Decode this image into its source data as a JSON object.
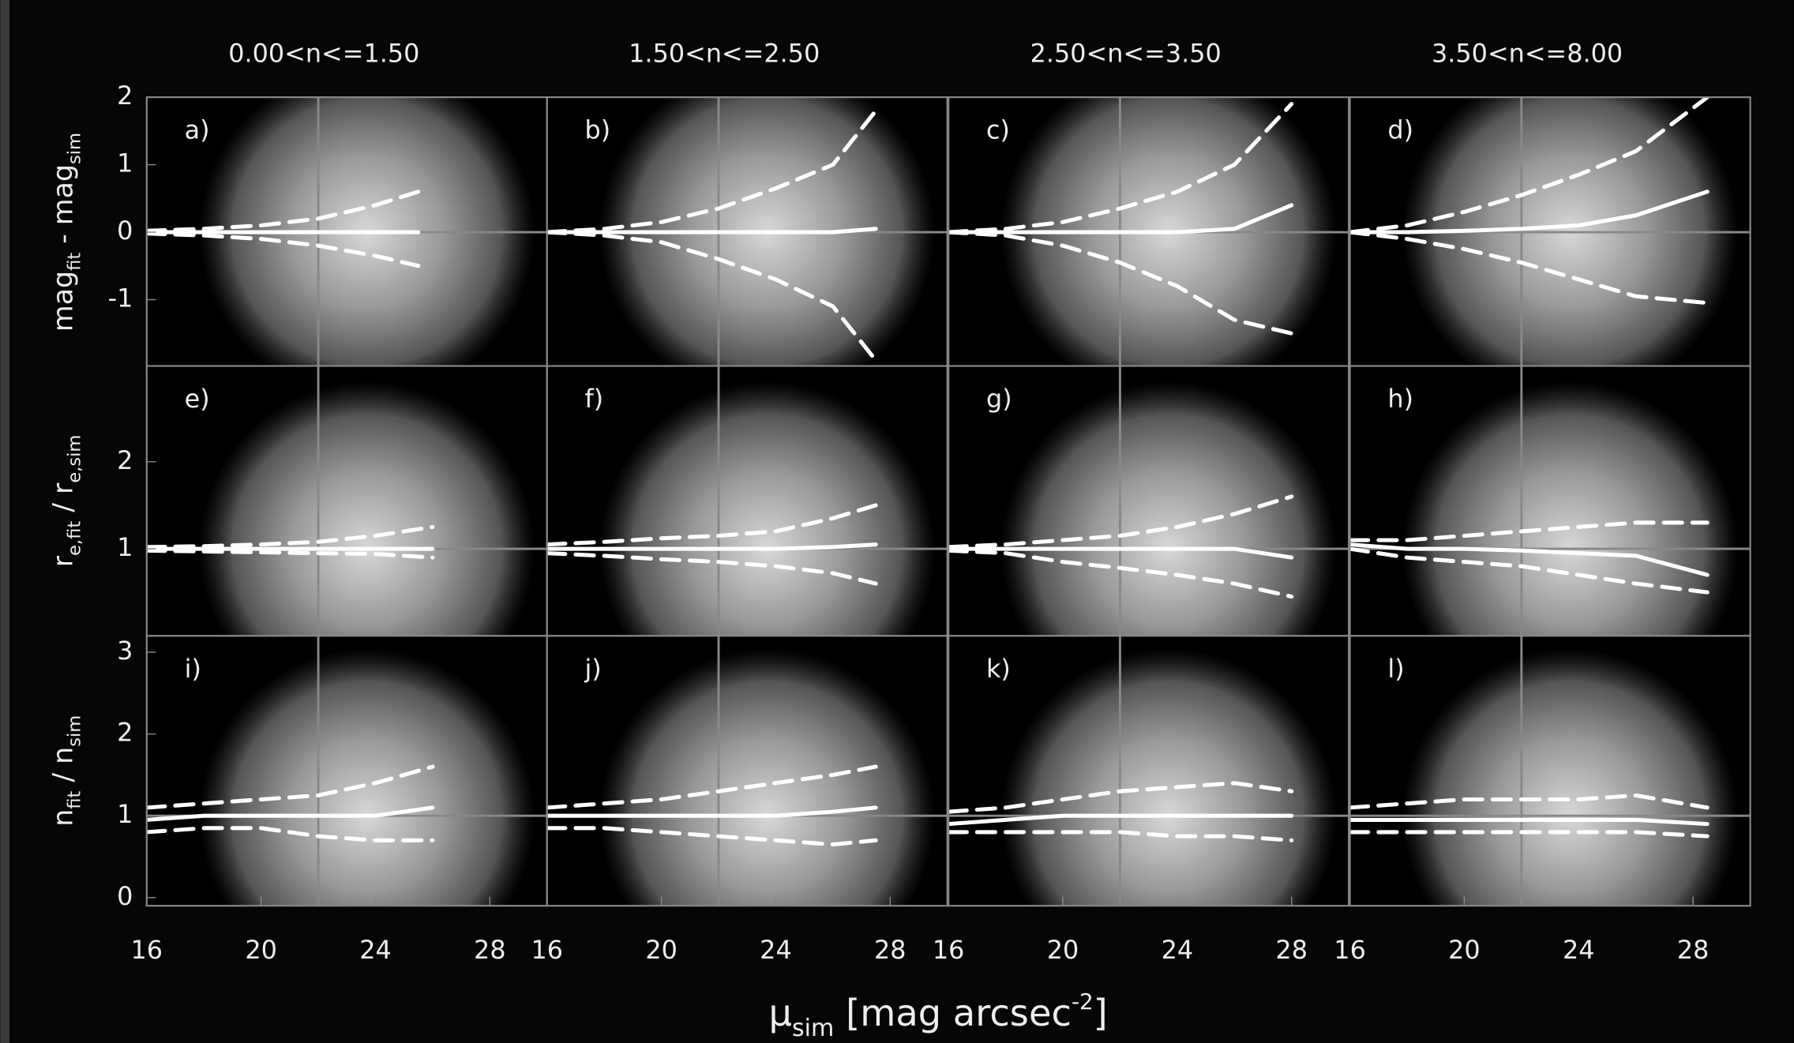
{
  "figure": {
    "xlabel": [
      {
        "text": "μ"
      },
      {
        "text": "sim",
        "sub": true
      },
      {
        "text": " [mag arcsec"
      },
      {
        "text": "-2",
        "sup": true
      },
      {
        "text": "]"
      }
    ]
  },
  "chart_data": [
    {
      "type": "line",
      "title": "0.00<n<=1.50",
      "annotation": "a)",
      "ylabel": [
        {
          "text": "mag"
        },
        {
          "text": "fit",
          "sub": true
        },
        {
          "text": " - mag"
        },
        {
          "text": "sim",
          "sub": true
        }
      ],
      "xlim": [
        16,
        30
      ],
      "ylim": [
        -2,
        2
      ],
      "yticks": [
        -1,
        0,
        1,
        2
      ],
      "vline": 22,
      "hline": 0,
      "x": [
        16,
        18,
        20,
        22,
        24,
        25.5
      ],
      "series": [
        {
          "style": "solid",
          "color": "#ffffff",
          "values": [
            0,
            0,
            0,
            0,
            0,
            0
          ]
        },
        {
          "style": "dashed",
          "color": "#ffffff",
          "values": [
            0.02,
            0.05,
            0.1,
            0.2,
            0.4,
            0.6
          ]
        },
        {
          "style": "dashed",
          "color": "#ffffff",
          "values": [
            -0.02,
            -0.05,
            -0.1,
            -0.2,
            -0.35,
            -0.5
          ]
        }
      ]
    },
    {
      "type": "line",
      "title": "1.50<n<=2.50",
      "annotation": "b)",
      "xlim": [
        16,
        30
      ],
      "ylim": [
        -2,
        2
      ],
      "vline": 22,
      "hline": 0,
      "x": [
        16,
        18,
        20,
        22,
        24,
        26,
        27.5
      ],
      "series": [
        {
          "style": "solid",
          "color": "#ffffff",
          "values": [
            0,
            0,
            0,
            0,
            0,
            0,
            0.05
          ]
        },
        {
          "style": "dashed",
          "color": "#ffffff",
          "values": [
            0,
            0.05,
            0.15,
            0.35,
            0.65,
            1.0,
            1.8
          ]
        },
        {
          "style": "dashed",
          "color": "#ffffff",
          "values": [
            0,
            -0.05,
            -0.15,
            -0.4,
            -0.7,
            -1.1,
            -1.9
          ]
        }
      ]
    },
    {
      "type": "line",
      "title": "2.50<n<=3.50",
      "annotation": "c)",
      "xlim": [
        16,
        30
      ],
      "ylim": [
        -2,
        2
      ],
      "vline": 22,
      "hline": 0,
      "x": [
        16,
        18,
        20,
        22,
        24,
        26,
        28
      ],
      "series": [
        {
          "style": "solid",
          "color": "#ffffff",
          "values": [
            0,
            0,
            0,
            0,
            0,
            0.05,
            0.4
          ]
        },
        {
          "style": "dashed",
          "color": "#ffffff",
          "values": [
            0,
            0.05,
            0.15,
            0.35,
            0.6,
            1.0,
            1.9
          ]
        },
        {
          "style": "dashed",
          "color": "#ffffff",
          "values": [
            0,
            -0.05,
            -0.2,
            -0.45,
            -0.8,
            -1.3,
            -1.5
          ]
        }
      ]
    },
    {
      "type": "line",
      "title": "3.50<n<=8.00",
      "annotation": "d)",
      "xlim": [
        16,
        30
      ],
      "ylim": [
        -2,
        2
      ],
      "vline": 22,
      "hline": 0,
      "x": [
        16,
        18,
        20,
        22,
        24,
        26,
        28.5
      ],
      "series": [
        {
          "style": "solid",
          "color": "#ffffff",
          "values": [
            0,
            0,
            0.02,
            0.05,
            0.1,
            0.25,
            0.6
          ]
        },
        {
          "style": "dashed",
          "color": "#ffffff",
          "values": [
            0,
            0.1,
            0.3,
            0.55,
            0.85,
            1.2,
            2.0
          ]
        },
        {
          "style": "dashed",
          "color": "#ffffff",
          "values": [
            0,
            -0.1,
            -0.25,
            -0.45,
            -0.7,
            -0.95,
            -1.05
          ]
        }
      ]
    },
    {
      "type": "line",
      "annotation": "e)",
      "ylabel": [
        {
          "text": "r"
        },
        {
          "text": "e,fit",
          "sub": true
        },
        {
          "text": " / r"
        },
        {
          "text": "e,sim",
          "sub": true
        }
      ],
      "xlim": [
        16,
        30
      ],
      "ylim": [
        0,
        3.1
      ],
      "yticks": [
        1,
        2
      ],
      "vline": 22,
      "hline": 1,
      "x": [
        16,
        18,
        20,
        22,
        24,
        26
      ],
      "series": [
        {
          "style": "solid",
          "color": "#ffffff",
          "values": [
            1,
            1,
            1,
            1,
            1,
            1
          ]
        },
        {
          "style": "dashed",
          "color": "#ffffff",
          "values": [
            1.02,
            1.03,
            1.05,
            1.08,
            1.15,
            1.25
          ]
        },
        {
          "style": "dashed",
          "color": "#ffffff",
          "values": [
            0.98,
            0.97,
            0.96,
            0.95,
            0.94,
            0.9
          ]
        }
      ]
    },
    {
      "type": "line",
      "annotation": "f)",
      "xlim": [
        16,
        30
      ],
      "ylim": [
        0,
        3.1
      ],
      "vline": 22,
      "hline": 1,
      "x": [
        16,
        18,
        20,
        22,
        24,
        26,
        27.5
      ],
      "series": [
        {
          "style": "solid",
          "color": "#ffffff",
          "values": [
            1,
            1,
            1,
            1,
            1,
            1.02,
            1.05
          ]
        },
        {
          "style": "dashed",
          "color": "#ffffff",
          "values": [
            1.05,
            1.08,
            1.12,
            1.15,
            1.2,
            1.35,
            1.5
          ]
        },
        {
          "style": "dashed",
          "color": "#ffffff",
          "values": [
            0.95,
            0.92,
            0.88,
            0.85,
            0.8,
            0.72,
            0.6
          ]
        }
      ]
    },
    {
      "type": "line",
      "annotation": "g)",
      "xlim": [
        16,
        30
      ],
      "ylim": [
        0,
        3.1
      ],
      "vline": 22,
      "hline": 1,
      "x": [
        16,
        18,
        20,
        22,
        24,
        26,
        28
      ],
      "series": [
        {
          "style": "solid",
          "color": "#ffffff",
          "values": [
            1,
            1,
            1,
            1,
            1,
            1,
            0.9
          ]
        },
        {
          "style": "dashed",
          "color": "#ffffff",
          "values": [
            1.02,
            1.05,
            1.1,
            1.15,
            1.25,
            1.4,
            1.6
          ]
        },
        {
          "style": "dashed",
          "color": "#ffffff",
          "values": [
            0.98,
            0.95,
            0.85,
            0.78,
            0.7,
            0.6,
            0.45
          ]
        }
      ]
    },
    {
      "type": "line",
      "annotation": "h)",
      "xlim": [
        16,
        30
      ],
      "ylim": [
        0,
        3.1
      ],
      "vline": 22,
      "hline": 1,
      "x": [
        16,
        18,
        20,
        22,
        24,
        26,
        28.5
      ],
      "series": [
        {
          "style": "solid",
          "color": "#ffffff",
          "values": [
            1.05,
            1,
            1,
            0.98,
            0.95,
            0.92,
            0.7
          ]
        },
        {
          "style": "dashed",
          "color": "#ffffff",
          "values": [
            1.1,
            1.1,
            1.15,
            1.2,
            1.25,
            1.3,
            1.3
          ]
        },
        {
          "style": "dashed",
          "color": "#ffffff",
          "values": [
            1,
            0.9,
            0.85,
            0.8,
            0.7,
            0.6,
            0.5
          ]
        }
      ]
    },
    {
      "type": "line",
      "annotation": "i)",
      "ylabel": [
        {
          "text": "n"
        },
        {
          "text": "fit",
          "sub": true
        },
        {
          "text": " / n"
        },
        {
          "text": "sim",
          "sub": true
        }
      ],
      "xlim": [
        16,
        30
      ],
      "ylim": [
        -0.1,
        3.2
      ],
      "xticks": [
        16,
        20,
        24,
        28
      ],
      "yticks": [
        0,
        1,
        2,
        3
      ],
      "vline": 22,
      "hline": 1,
      "x": [
        16,
        18,
        20,
        22,
        24,
        26
      ],
      "series": [
        {
          "style": "solid",
          "color": "#ffffff",
          "values": [
            0.95,
            1,
            1,
            1,
            1,
            1.1
          ]
        },
        {
          "style": "dashed",
          "color": "#ffffff",
          "values": [
            1.1,
            1.15,
            1.2,
            1.25,
            1.4,
            1.6
          ]
        },
        {
          "style": "dashed",
          "color": "#ffffff",
          "values": [
            0.8,
            0.85,
            0.85,
            0.75,
            0.7,
            0.7
          ]
        }
      ]
    },
    {
      "type": "line",
      "annotation": "j)",
      "xlim": [
        16,
        30
      ],
      "ylim": [
        -0.1,
        3.2
      ],
      "xticks": [
        16,
        20,
        24,
        28
      ],
      "vline": 22,
      "hline": 1,
      "x": [
        16,
        18,
        20,
        22,
        24,
        26,
        27.5
      ],
      "series": [
        {
          "style": "solid",
          "color": "#ffffff",
          "values": [
            1,
            1,
            1,
            1,
            1,
            1.05,
            1.1
          ]
        },
        {
          "style": "dashed",
          "color": "#ffffff",
          "values": [
            1.1,
            1.15,
            1.2,
            1.3,
            1.4,
            1.5,
            1.6
          ]
        },
        {
          "style": "dashed",
          "color": "#ffffff",
          "values": [
            0.85,
            0.85,
            0.8,
            0.75,
            0.7,
            0.65,
            0.7
          ]
        }
      ]
    },
    {
      "type": "line",
      "annotation": "k)",
      "xlim": [
        16,
        30
      ],
      "ylim": [
        -0.1,
        3.2
      ],
      "xticks": [
        16,
        20,
        24,
        28
      ],
      "vline": 22,
      "hline": 1,
      "x": [
        16,
        18,
        20,
        22,
        24,
        26,
        28
      ],
      "series": [
        {
          "style": "solid",
          "color": "#ffffff",
          "values": [
            0.9,
            0.95,
            1,
            1,
            1,
            1,
            1
          ]
        },
        {
          "style": "dashed",
          "color": "#ffffff",
          "values": [
            1.05,
            1.1,
            1.2,
            1.3,
            1.35,
            1.4,
            1.3
          ]
        },
        {
          "style": "dashed",
          "color": "#ffffff",
          "values": [
            0.8,
            0.8,
            0.8,
            0.8,
            0.75,
            0.75,
            0.7
          ]
        }
      ]
    },
    {
      "type": "line",
      "annotation": "l)",
      "xlim": [
        16,
        30
      ],
      "ylim": [
        -0.1,
        3.2
      ],
      "xticks": [
        16,
        20,
        24,
        28
      ],
      "vline": 22,
      "hline": 1,
      "x": [
        16,
        18,
        20,
        22,
        24,
        26,
        28.5
      ],
      "series": [
        {
          "style": "solid",
          "color": "#ffffff",
          "values": [
            0.95,
            0.95,
            0.95,
            0.95,
            0.95,
            0.95,
            0.9
          ]
        },
        {
          "style": "dashed",
          "color": "#ffffff",
          "values": [
            1.1,
            1.15,
            1.2,
            1.2,
            1.2,
            1.25,
            1.1
          ]
        },
        {
          "style": "dashed",
          "color": "#ffffff",
          "values": [
            0.8,
            0.8,
            0.8,
            0.8,
            0.8,
            0.8,
            0.75
          ]
        }
      ]
    }
  ]
}
